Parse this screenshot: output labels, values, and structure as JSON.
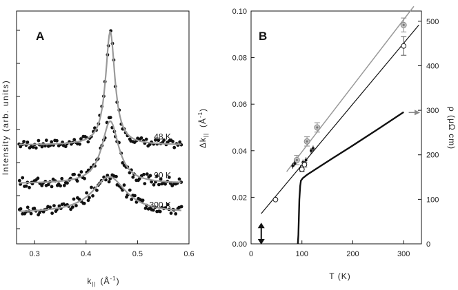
{
  "chart_data": [
    {
      "type": "scatter",
      "panel_label": "A",
      "xlabel": "k",
      "xlabel_subscript": "||",
      "xlabel_unit": "(Å",
      "xlabel_unit_exp": "-1",
      "xlabel_unit_close": ")",
      "ylabel": "Intensity (arb. units)",
      "xlim": [
        0.265,
        0.6
      ],
      "xticks": [
        "0.3",
        "0.4",
        "0.5",
        "0.6"
      ],
      "xtick_values": [
        0.3,
        0.4,
        0.5,
        0.6
      ],
      "y_tick_labels_shown": false,
      "series": [
        {
          "name": "48  K",
          "baseline": 0.12,
          "peak_x": 0.447,
          "amplitude": 1.0,
          "hwhm": 0.011,
          "fit_color": "#9a9a9a",
          "point_color": "#111111"
        },
        {
          "name": "90  K",
          "baseline": -0.22,
          "peak_x": 0.447,
          "amplitude": 0.55,
          "hwhm": 0.02,
          "fit_color": "#9a9a9a",
          "point_color": "#111111"
        },
        {
          "name": "300  K",
          "baseline": -0.48,
          "peak_x": 0.445,
          "amplitude": 0.32,
          "hwhm": 0.04,
          "fit_color": "#9a9a9a",
          "point_color": "#111111"
        }
      ]
    },
    {
      "type": "line",
      "panel_label": "B",
      "xlabel": "T (K)",
      "ylabel_left": "Δk",
      "ylabel_left_subscript": "||",
      "ylabel_left_unit": "(Å",
      "ylabel_left_unit_exp": "-1",
      "ylabel_left_unit_close": ")",
      "ylabel_right": "ρ (μΩ cm)",
      "xlim": [
        0,
        335
      ],
      "xticks": [
        "0",
        "100",
        "200",
        "300"
      ],
      "xtick_values": [
        0,
        100,
        200,
        300
      ],
      "ylim_left": [
        0,
        0.1
      ],
      "yticks_left": [
        "0.00",
        "0.02",
        "0.04",
        "0.06",
        "0.08",
        "0.10"
      ],
      "ytick_left_values": [
        0,
        0.02,
        0.04,
        0.06,
        0.08,
        0.1
      ],
      "ylim_right": [
        0,
        523
      ],
      "yticks_right": [
        "0",
        "100",
        "200",
        "300",
        "400",
        "500"
      ],
      "ytick_right_values": [
        0,
        100,
        200,
        300,
        400,
        500
      ],
      "series": [
        {
          "name": "gray",
          "color": "#999999",
          "line": [
            [
              70,
              0.031
            ],
            [
              320,
              0.102
            ]
          ],
          "points": [
            {
              "x": 90,
              "y": 0.036,
              "err": 0.002
            },
            {
              "x": 110,
              "y": 0.044,
              "err": 0.002
            },
            {
              "x": 130,
              "y": 0.05,
              "err": 0.002
            },
            {
              "x": 300,
              "y": 0.094,
              "err": 0.003
            }
          ]
        },
        {
          "name": "open circles",
          "color": "#111111",
          "line": [
            [
              20,
              0.013
            ],
            [
              330,
              0.094
            ]
          ],
          "points": [
            {
              "x": 48,
              "y": 0.019,
              "err": 0
            },
            {
              "x": 100,
              "y": 0.032,
              "err": 0.001
            },
            {
              "x": 105,
              "y": 0.034,
              "err": 0.001
            },
            {
              "x": 300,
              "y": 0.085,
              "err": 0.004
            }
          ],
          "small_points": [
            {
              "x": 82,
              "y": 0.0335
            },
            {
              "x": 86,
              "y": 0.0345
            },
            {
              "x": 97,
              "y": 0.0325
            },
            {
              "x": 102,
              "y": 0.035
            },
            {
              "x": 108,
              "y": 0.036
            },
            {
              "x": 118,
              "y": 0.04
            },
            {
              "x": 122,
              "y": 0.041
            }
          ]
        },
        {
          "name": "resistivity",
          "axis": "right",
          "color": "#111111",
          "points": [
            [
              92,
              0
            ],
            [
              93,
              20
            ],
            [
              94,
              60
            ],
            [
              95,
              100
            ],
            [
              96.5,
              130
            ],
            [
              98,
              142
            ],
            [
              102,
              148
            ],
            [
              110,
              155
            ],
            [
              130,
              170
            ],
            [
              160,
              192
            ],
            [
              200,
              221
            ],
            [
              250,
              258
            ],
            [
              300,
              296
            ]
          ]
        }
      ],
      "arrow_right_at": {
        "x": 310,
        "y_right": 295
      },
      "arrow_double_at": {
        "x": 20,
        "y_low": 0.0,
        "y_high": 0.0085
      }
    }
  ]
}
